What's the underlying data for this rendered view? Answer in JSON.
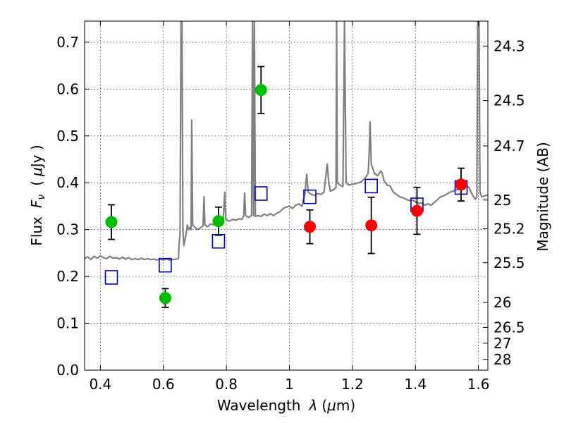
{
  "chart_data": {
    "type": "scatter",
    "xlabel_text": "Wavelength",
    "xlabel_symbol": "λ",
    "xlabel_unit_open": "(",
    "xlabel_unit_mu": "μ",
    "xlabel_unit_rest": "m)",
    "ylabel_text": "Flux",
    "ylabel_symbol_F": "F",
    "ylabel_symbol_nu": "ν",
    "ylabel_unit_open": "(",
    "ylabel_unit_mu": "μ",
    "ylabel_unit_rest": "Jy )",
    "y2label": "Magnitude (AB)",
    "xlim": [
      0.35,
      1.63
    ],
    "ylim": [
      0.0,
      0.745
    ],
    "x_ticks": [
      0.4,
      0.6,
      0.8,
      1.0,
      1.2,
      1.4,
      1.6
    ],
    "x_tick_labels": [
      "0.4",
      "0.6",
      "0.8",
      "1",
      "1.2",
      "1.4",
      "1.6"
    ],
    "y_ticks": [
      0.0,
      0.1,
      0.2,
      0.3,
      0.4,
      0.5,
      0.6,
      0.7
    ],
    "y_tick_labels": [
      "0.0",
      "0.1",
      "0.2",
      "0.3",
      "0.4",
      "0.5",
      "0.6",
      "0.7"
    ],
    "y2_ticks": [
      24.3,
      24.5,
      24.7,
      25,
      25.2,
      25.5,
      26,
      26.5,
      27,
      28
    ],
    "y2_tick_labels": [
      "24.3",
      "24.5",
      "24.7",
      "25",
      "25.2",
      "25.5",
      "26",
      "26.5",
      "27",
      "28"
    ],
    "grid": true,
    "colors": {
      "model_spectrum": "#808080",
      "green_points": "#00bf00",
      "red_points": "#ff0000",
      "model_photometry": "#0000cc",
      "error_bars": "#000000"
    },
    "series": [
      {
        "marker": "circle",
        "color": "#00bf00",
        "points": [
          {
            "x": 0.435,
            "y": 0.316,
            "err": 0.037
          },
          {
            "x": 0.606,
            "y": 0.154,
            "err": 0.02
          },
          {
            "x": 0.775,
            "y": 0.318,
            "err": 0.03
          },
          {
            "x": 0.91,
            "y": 0.598,
            "err": 0.05
          }
        ]
      },
      {
        "marker": "circle",
        "color": "#ff0000",
        "points": [
          {
            "x": 1.065,
            "y": 0.306,
            "err": 0.036
          },
          {
            "x": 1.26,
            "y": 0.309,
            "err": 0.06
          },
          {
            "x": 1.405,
            "y": 0.34,
            "err": 0.05
          },
          {
            "x": 1.545,
            "y": 0.396,
            "err": 0.035
          }
        ]
      },
      {
        "marker": "square",
        "color": "#0000cc",
        "points": [
          {
            "x": 0.435,
            "y": 0.198
          },
          {
            "x": 0.606,
            "y": 0.224
          },
          {
            "x": 0.775,
            "y": 0.275
          },
          {
            "x": 0.91,
            "y": 0.377
          },
          {
            "x": 1.065,
            "y": 0.37
          },
          {
            "x": 1.26,
            "y": 0.393
          },
          {
            "x": 1.405,
            "y": 0.353
          },
          {
            "x": 1.545,
            "y": 0.39
          }
        ]
      },
      {
        "marker": "line",
        "color": "#808080",
        "points": [
          [
            0.35,
            0.238
          ],
          [
            0.36,
            0.242
          ],
          [
            0.37,
            0.236
          ],
          [
            0.38,
            0.243
          ],
          [
            0.39,
            0.239
          ],
          [
            0.4,
            0.244
          ],
          [
            0.41,
            0.24
          ],
          [
            0.42,
            0.238
          ],
          [
            0.43,
            0.243
          ],
          [
            0.44,
            0.239
          ],
          [
            0.45,
            0.24
          ],
          [
            0.46,
            0.237
          ],
          [
            0.47,
            0.241
          ],
          [
            0.48,
            0.237
          ],
          [
            0.49,
            0.24
          ],
          [
            0.5,
            0.236
          ],
          [
            0.51,
            0.238
          ],
          [
            0.52,
            0.236
          ],
          [
            0.53,
            0.239
          ],
          [
            0.54,
            0.236
          ],
          [
            0.55,
            0.238
          ],
          [
            0.56,
            0.236
          ],
          [
            0.57,
            0.237
          ],
          [
            0.58,
            0.235
          ],
          [
            0.59,
            0.237
          ],
          [
            0.6,
            0.235
          ],
          [
            0.61,
            0.237
          ],
          [
            0.62,
            0.235
          ],
          [
            0.63,
            0.236
          ],
          [
            0.64,
            0.237
          ],
          [
            0.648,
            0.238
          ],
          [
            0.65,
            0.27
          ],
          [
            0.653,
            0.29
          ],
          [
            0.656,
            0.75
          ],
          [
            0.659,
            0.75
          ],
          [
            0.662,
            0.3
          ],
          [
            0.665,
            0.266
          ],
          [
            0.668,
            0.275
          ],
          [
            0.672,
            0.29
          ],
          [
            0.676,
            0.31
          ],
          [
            0.68,
            0.3
          ],
          [
            0.684,
            0.305
          ],
          [
            0.688,
            0.3
          ],
          [
            0.69,
            0.534
          ],
          [
            0.693,
            0.31
          ],
          [
            0.7,
            0.305
          ],
          [
            0.71,
            0.3
          ],
          [
            0.72,
            0.305
          ],
          [
            0.726,
            0.308
          ],
          [
            0.729,
            0.37
          ],
          [
            0.732,
            0.31
          ],
          [
            0.74,
            0.306
          ],
          [
            0.75,
            0.312
          ],
          [
            0.76,
            0.31
          ],
          [
            0.77,
            0.318
          ],
          [
            0.78,
            0.316
          ],
          [
            0.79,
            0.32
          ],
          [
            0.795,
            0.38
          ],
          [
            0.798,
            0.322
          ],
          [
            0.81,
            0.318
          ],
          [
            0.82,
            0.322
          ],
          [
            0.83,
            0.32
          ],
          [
            0.84,
            0.323
          ],
          [
            0.85,
            0.322
          ],
          [
            0.855,
            0.33
          ],
          [
            0.858,
            0.378
          ],
          [
            0.861,
            0.33
          ],
          [
            0.87,
            0.326
          ],
          [
            0.88,
            0.33
          ],
          [
            0.883,
            0.75
          ],
          [
            0.886,
            0.33
          ],
          [
            0.889,
            0.75
          ],
          [
            0.892,
            0.328
          ],
          [
            0.9,
            0.33
          ],
          [
            0.91,
            0.328
          ],
          [
            0.92,
            0.333
          ],
          [
            0.93,
            0.33
          ],
          [
            0.94,
            0.334
          ],
          [
            0.95,
            0.33
          ],
          [
            0.96,
            0.335
          ],
          [
            0.97,
            0.338
          ],
          [
            0.98,
            0.345
          ],
          [
            0.99,
            0.348
          ],
          [
            1.0,
            0.35
          ],
          [
            1.01,
            0.345
          ],
          [
            1.02,
            0.352
          ],
          [
            1.03,
            0.355
          ],
          [
            1.04,
            0.35
          ],
          [
            1.05,
            0.38
          ],
          [
            1.055,
            0.418
          ],
          [
            1.06,
            0.38
          ],
          [
            1.07,
            0.375
          ],
          [
            1.08,
            0.373
          ],
          [
            1.09,
            0.377
          ],
          [
            1.1,
            0.375
          ],
          [
            1.11,
            0.38
          ],
          [
            1.12,
            0.44
          ],
          [
            1.125,
            0.4
          ],
          [
            1.13,
            0.382
          ],
          [
            1.14,
            0.385
          ],
          [
            1.148,
            0.39
          ],
          [
            1.15,
            0.75
          ],
          [
            1.152,
            0.4
          ],
          [
            1.16,
            0.395
          ],
          [
            1.17,
            0.392
          ],
          [
            1.175,
            0.75
          ],
          [
            1.18,
            0.4
          ],
          [
            1.19,
            0.395
          ],
          [
            1.2,
            0.397
          ],
          [
            1.21,
            0.398
          ],
          [
            1.22,
            0.4
          ],
          [
            1.23,
            0.403
          ],
          [
            1.24,
            0.41
          ],
          [
            1.25,
            0.42
          ],
          [
            1.253,
            0.46
          ],
          [
            1.256,
            0.53
          ],
          [
            1.26,
            0.44
          ],
          [
            1.27,
            0.42
          ],
          [
            1.28,
            0.415
          ],
          [
            1.29,
            0.425
          ],
          [
            1.295,
            0.42
          ],
          [
            1.3,
            0.405
          ],
          [
            1.31,
            0.395
          ],
          [
            1.32,
            0.393
          ],
          [
            1.33,
            0.38
          ],
          [
            1.34,
            0.375
          ],
          [
            1.35,
            0.37
          ],
          [
            1.36,
            0.368
          ],
          [
            1.37,
            0.365
          ],
          [
            1.38,
            0.362
          ],
          [
            1.39,
            0.363
          ],
          [
            1.4,
            0.36
          ],
          [
            1.41,
            0.356
          ],
          [
            1.42,
            0.357
          ],
          [
            1.43,
            0.352
          ],
          [
            1.44,
            0.355
          ],
          [
            1.45,
            0.352
          ],
          [
            1.46,
            0.358
          ],
          [
            1.47,
            0.364
          ],
          [
            1.48,
            0.37
          ],
          [
            1.49,
            0.372
          ],
          [
            1.5,
            0.376
          ],
          [
            1.51,
            0.38
          ],
          [
            1.52,
            0.382
          ],
          [
            1.53,
            0.385
          ],
          [
            1.54,
            0.388
          ],
          [
            1.55,
            0.4
          ],
          [
            1.56,
            0.395
          ],
          [
            1.57,
            0.39
          ],
          [
            1.58,
            0.375
          ],
          [
            1.59,
            0.365
          ],
          [
            1.595,
            0.37
          ],
          [
            1.598,
            0.75
          ],
          [
            1.602,
            0.75
          ],
          [
            1.605,
            0.38
          ],
          [
            1.61,
            0.37
          ],
          [
            1.62,
            0.372
          ],
          [
            1.63,
            0.374
          ]
        ]
      }
    ]
  }
}
